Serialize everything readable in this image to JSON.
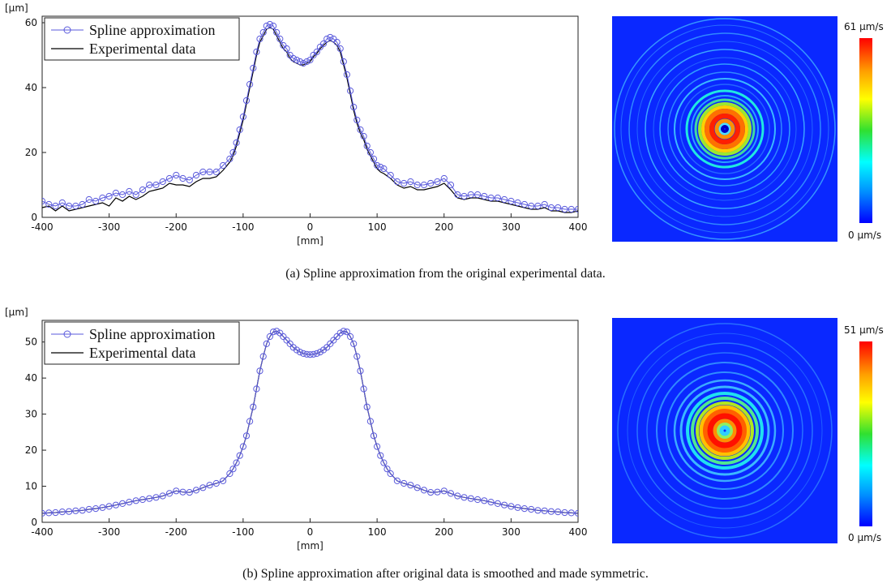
{
  "panels": [
    {
      "id": "a",
      "caption": "(a) Spline approximation from the original experimental data.",
      "colorbar": {
        "max_label": "61 μm/s",
        "min_label": "0 μm/s"
      },
      "chart_data": {
        "type": "line",
        "xlabel": "[mm]",
        "ylabel": "[μm]",
        "xlim": [
          -400,
          400
        ],
        "ylim": [
          0,
          62
        ],
        "xticks": [
          -400,
          -300,
          -200,
          -100,
          0,
          100,
          200,
          300,
          400
        ],
        "yticks": [
          0,
          20,
          40,
          60
        ],
        "grid": false,
        "legend_position": "top-left",
        "series": [
          {
            "name": "Spline approximation",
            "color": "#5a5adc",
            "marker": "circle",
            "x": [
              -400,
              -390,
              -380,
              -370,
              -360,
              -350,
              -340,
              -330,
              -320,
              -310,
              -300,
              -290,
              -280,
              -270,
              -260,
              -250,
              -240,
              -230,
              -220,
              -210,
              -200,
              -190,
              -180,
              -170,
              -160,
              -150,
              -140,
              -130,
              -120,
              -115,
              -110,
              -105,
              -100,
              -95,
              -90,
              -85,
              -80,
              -75,
              -70,
              -65,
              -60,
              -55,
              -50,
              -45,
              -40,
              -35,
              -30,
              -25,
              -20,
              -15,
              -10,
              -5,
              0,
              5,
              10,
              15,
              20,
              25,
              30,
              35,
              40,
              45,
              50,
              55,
              60,
              65,
              70,
              75,
              80,
              85,
              90,
              95,
              100,
              105,
              110,
              120,
              130,
              140,
              150,
              160,
              170,
              180,
              190,
              200,
              210,
              220,
              230,
              240,
              250,
              260,
              270,
              280,
              290,
              300,
              310,
              320,
              330,
              340,
              350,
              360,
              370,
              380,
              390,
              400
            ],
            "y": [
              5,
              4,
              3.5,
              4.5,
              3.5,
              3.5,
              4,
              5.5,
              5,
              6,
              6.5,
              7.5,
              7,
              8,
              7,
              8.5,
              10,
              10,
              11,
              12,
              13,
              12,
              11.5,
              13,
              14,
              14,
              14,
              16,
              18,
              20,
              23,
              27,
              31,
              36,
              41,
              46,
              51,
              55,
              57,
              59,
              59.5,
              59,
              57,
              55,
              53,
              52,
              50,
              49,
              48.5,
              48,
              47.5,
              48,
              48.5,
              50,
              51,
              52.5,
              53.5,
              55,
              55.5,
              55,
              54,
              52,
              48,
              44,
              39,
              34,
              30,
              27,
              25,
              22,
              20,
              18,
              16,
              15.5,
              15,
              13,
              11,
              10.5,
              11,
              10,
              10,
              10.5,
              11,
              12,
              10,
              7,
              6.5,
              7,
              7,
              6.5,
              6,
              6,
              5.5,
              5,
              4.5,
              4,
              3.5,
              3.5,
              4,
              3,
              3,
              2.5,
              2.5,
              2.5
            ]
          },
          {
            "name": "Experimental data",
            "color": "#000000",
            "marker": "none",
            "x": [
              -400,
              -390,
              -380,
              -370,
              -360,
              -350,
              -340,
              -330,
              -320,
              -310,
              -300,
              -290,
              -280,
              -270,
              -260,
              -250,
              -240,
              -230,
              -220,
              -210,
              -200,
              -190,
              -180,
              -170,
              -160,
              -150,
              -140,
              -130,
              -120,
              -115,
              -110,
              -105,
              -100,
              -95,
              -90,
              -85,
              -80,
              -75,
              -70,
              -65,
              -60,
              -55,
              -50,
              -45,
              -40,
              -35,
              -30,
              -25,
              -20,
              -15,
              -10,
              -5,
              0,
              5,
              10,
              15,
              20,
              25,
              30,
              35,
              40,
              45,
              50,
              55,
              60,
              65,
              70,
              75,
              80,
              85,
              90,
              95,
              100,
              105,
              110,
              120,
              130,
              140,
              150,
              160,
              170,
              180,
              190,
              200,
              210,
              220,
              230,
              240,
              250,
              260,
              270,
              280,
              290,
              300,
              310,
              320,
              330,
              340,
              350,
              360,
              370,
              380,
              390,
              400
            ],
            "y": [
              3,
              3.5,
              2,
              3.5,
              2,
              2.5,
              3,
              3.5,
              4,
              4.5,
              3.5,
              6,
              5,
              6.5,
              5.5,
              6.5,
              8,
              8.5,
              9,
              10.5,
              10,
              10,
              9.5,
              11,
              12,
              12,
              12.5,
              14.5,
              17,
              19,
              22,
              26,
              30,
              35,
              40,
              45,
              50,
              54,
              56,
              58,
              58.5,
              58,
              56,
              54,
              52,
              51,
              49,
              48,
              47.5,
              47,
              47,
              47.5,
              48,
              49.5,
              50.5,
              52,
              53,
              54,
              54.5,
              54,
              53,
              51,
              47,
              43,
              38,
              33,
              29,
              26,
              24,
              21,
              19,
              17,
              15,
              14,
              13.5,
              12,
              10,
              9,
              9.5,
              8.5,
              8.5,
              9,
              9.5,
              10.5,
              8.5,
              6,
              5.5,
              6,
              6,
              5.5,
              5,
              5,
              4.5,
              4,
              3.5,
              3,
              2.5,
              2.5,
              3,
              2,
              2,
              1.5,
              1.5,
              2
            ]
          }
        ]
      }
    },
    {
      "id": "b",
      "caption": "(b) Spline approximation after original data is smoothed and made symmetric.",
      "colorbar": {
        "max_label": "51 μm/s",
        "min_label": "0 μm/s"
      },
      "chart_data": {
        "type": "line",
        "xlabel": "[mm]",
        "ylabel": "[μm]",
        "xlim": [
          -400,
          400
        ],
        "ylim": [
          0,
          56
        ],
        "xticks": [
          -400,
          -300,
          -200,
          -100,
          0,
          100,
          200,
          300,
          400
        ],
        "yticks": [
          0,
          10,
          20,
          30,
          40,
          50
        ],
        "grid": false,
        "legend_position": "top-left",
        "series": [
          {
            "name": "Spline approximation",
            "color": "#5a5adc",
            "marker": "circle",
            "x": [
              -400,
              -390,
              -380,
              -370,
              -360,
              -350,
              -340,
              -330,
              -320,
              -310,
              -300,
              -290,
              -280,
              -270,
              -260,
              -250,
              -240,
              -230,
              -220,
              -210,
              -200,
              -190,
              -180,
              -170,
              -160,
              -150,
              -140,
              -130,
              -120,
              -115,
              -110,
              -105,
              -100,
              -95,
              -90,
              -85,
              -80,
              -75,
              -70,
              -65,
              -60,
              -55,
              -50,
              -45,
              -40,
              -35,
              -30,
              -25,
              -20,
              -15,
              -10,
              -5,
              0,
              5,
              10,
              15,
              20,
              25,
              30,
              35,
              40,
              45,
              50,
              55,
              60,
              65,
              70,
              75,
              80,
              85,
              90,
              95,
              100,
              105,
              110,
              115,
              120,
              130,
              140,
              150,
              160,
              170,
              180,
              190,
              200,
              210,
              220,
              230,
              240,
              250,
              260,
              270,
              280,
              290,
              300,
              310,
              320,
              330,
              340,
              350,
              360,
              370,
              380,
              390,
              400
            ],
            "y": [
              2.5,
              2.6,
              2.7,
              2.9,
              3.0,
              3.2,
              3.3,
              3.6,
              3.8,
              4.1,
              4.4,
              4.8,
              5.2,
              5.6,
              6.0,
              6.3,
              6.6,
              6.9,
              7.3,
              8.0,
              8.7,
              8.4,
              8.3,
              8.9,
              9.6,
              10.3,
              10.8,
              11.5,
              13.5,
              14.8,
              16.5,
              18.5,
              21,
              24,
              28,
              32,
              37,
              42,
              46,
              49.5,
              51.5,
              52.8,
              53,
              52.5,
              51.5,
              50.5,
              49.5,
              48.5,
              47.8,
              47.2,
              46.8,
              46.6,
              46.5,
              46.6,
              46.8,
              47.2,
              47.8,
              48.5,
              49.5,
              50.5,
              51.5,
              52.5,
              53,
              52.8,
              51.5,
              49.5,
              46,
              42,
              37,
              32,
              28,
              24,
              21,
              18.5,
              16.5,
              14.8,
              13.5,
              11.5,
              10.8,
              10.3,
              9.6,
              8.9,
              8.3,
              8.4,
              8.7,
              8.0,
              7.3,
              6.9,
              6.6,
              6.3,
              6.0,
              5.6,
              5.2,
              4.8,
              4.4,
              4.1,
              3.8,
              3.6,
              3.3,
              3.2,
              3.0,
              2.9,
              2.7,
              2.6,
              2.5
            ]
          },
          {
            "name": "Experimental data",
            "color": "#000000",
            "marker": "none",
            "x": [
              -400,
              -390,
              -380,
              -370,
              -360,
              -350,
              -340,
              -330,
              -320,
              -310,
              -300,
              -290,
              -280,
              -270,
              -260,
              -250,
              -240,
              -230,
              -220,
              -210,
              -200,
              -190,
              -180,
              -170,
              -160,
              -150,
              -140,
              -130,
              -120,
              -115,
              -110,
              -105,
              -100,
              -95,
              -90,
              -85,
              -80,
              -75,
              -70,
              -65,
              -60,
              -55,
              -50,
              -45,
              -40,
              -35,
              -30,
              -25,
              -20,
              -15,
              -10,
              -5,
              0,
              5,
              10,
              15,
              20,
              25,
              30,
              35,
              40,
              45,
              50,
              55,
              60,
              65,
              70,
              75,
              80,
              85,
              90,
              95,
              100,
              105,
              110,
              115,
              120,
              130,
              140,
              150,
              160,
              170,
              180,
              190,
              200,
              210,
              220,
              230,
              240,
              250,
              260,
              270,
              280,
              290,
              300,
              310,
              320,
              330,
              340,
              350,
              360,
              370,
              380,
              390,
              400
            ],
            "y": [
              2.5,
              2.6,
              2.7,
              2.9,
              3.0,
              3.2,
              3.3,
              3.6,
              3.8,
              4.1,
              4.4,
              4.8,
              5.2,
              5.6,
              6.0,
              6.3,
              6.6,
              6.9,
              7.3,
              8.0,
              8.7,
              8.4,
              8.3,
              8.9,
              9.6,
              10.3,
              10.8,
              11.5,
              13.5,
              14.8,
              16.5,
              18.5,
              21,
              24,
              28,
              32,
              37,
              42,
              46,
              49.5,
              51.5,
              52.8,
              53,
              52.5,
              51.5,
              50.5,
              49.5,
              48.5,
              47.8,
              47.2,
              46.8,
              46.6,
              46.5,
              46.6,
              46.8,
              47.2,
              47.8,
              48.5,
              49.5,
              50.5,
              51.5,
              52.5,
              53,
              52.8,
              51.5,
              49.5,
              46,
              42,
              37,
              32,
              28,
              24,
              21,
              18.5,
              16.5,
              14.8,
              13.5,
              11.5,
              10.8,
              10.3,
              9.6,
              8.9,
              8.3,
              8.4,
              8.7,
              8.0,
              7.3,
              6.9,
              6.6,
              6.3,
              6.0,
              5.6,
              5.2,
              4.8,
              4.4,
              4.1,
              3.8,
              3.6,
              3.3,
              3.2,
              3.0,
              2.9,
              2.7,
              2.6,
              2.5
            ]
          }
        ]
      }
    }
  ]
}
